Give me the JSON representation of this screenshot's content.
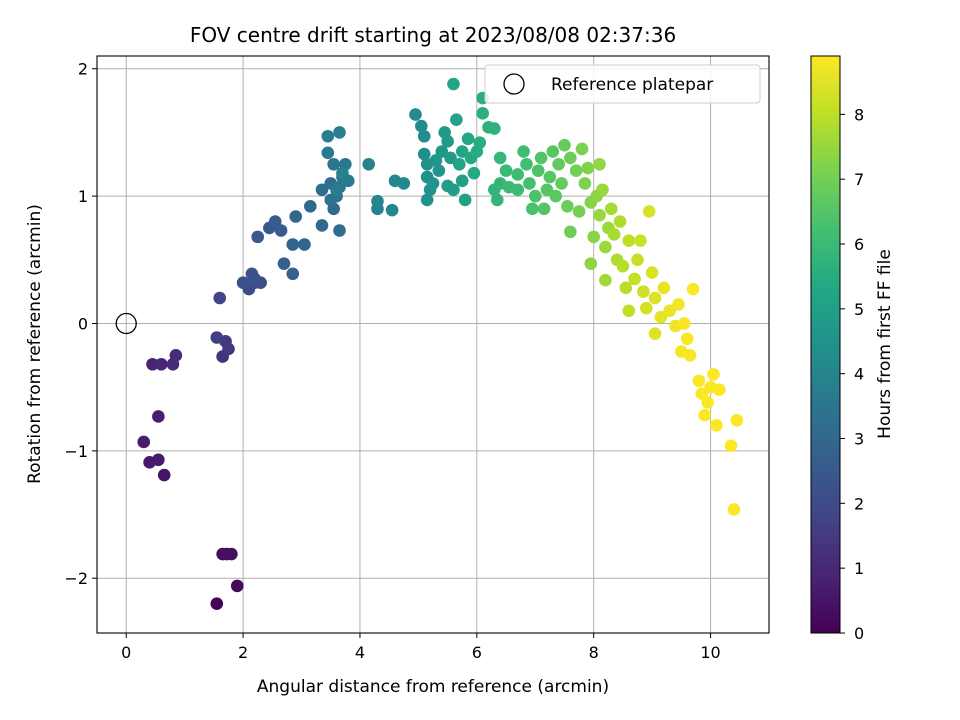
{
  "chart_data": {
    "type": "scatter",
    "title": "FOV centre drift starting at 2023/08/08 02:37:36",
    "xlabel": "Angular distance from reference (arcmin)",
    "ylabel": "Rotation from reference (arcmin)",
    "xlim": [
      -0.5,
      11.0
    ],
    "ylim": [
      -2.43,
      2.1
    ],
    "xticks": [
      0,
      2,
      4,
      6,
      8,
      10
    ],
    "yticks": [
      -2,
      -1,
      0,
      1,
      2
    ],
    "xtick_labels": [
      "0",
      "2",
      "4",
      "6",
      "8",
      "10"
    ],
    "ytick_labels": [
      "−2",
      "−1",
      "0",
      "1",
      "2"
    ],
    "grid": true,
    "legend": {
      "position": "top-right",
      "entries": [
        "Reference platepar"
      ]
    },
    "reference_point": {
      "x": 0,
      "y": 0,
      "label": "Reference platepar"
    },
    "colorbar": {
      "label": "Hours from first FF file",
      "range": [
        0,
        8.9
      ],
      "ticks": [
        0,
        1,
        2,
        3,
        4,
        5,
        6,
        7,
        8
      ],
      "tick_labels": [
        "0",
        "1",
        "2",
        "3",
        "4",
        "5",
        "6",
        "7",
        "8"
      ],
      "colormap": "viridis"
    },
    "points": [
      [
        1.55,
        -2.2,
        0.1
      ],
      [
        1.9,
        -2.06,
        0.2
      ],
      [
        1.65,
        -1.81,
        0.3
      ],
      [
        1.8,
        -1.81,
        0.35
      ],
      [
        1.72,
        -1.81,
        0.4
      ],
      [
        0.65,
        -1.19,
        0.5
      ],
      [
        0.4,
        -1.09,
        0.6
      ],
      [
        0.55,
        -1.07,
        0.65
      ],
      [
        0.3,
        -0.93,
        0.7
      ],
      [
        0.55,
        -0.73,
        0.8
      ],
      [
        0.45,
        -0.32,
        0.9
      ],
      [
        0.6,
        -0.32,
        1.0
      ],
      [
        0.8,
        -0.32,
        1.05
      ],
      [
        0.85,
        -0.25,
        1.1
      ],
      [
        1.65,
        -0.26,
        1.3
      ],
      [
        1.75,
        -0.2,
        1.4
      ],
      [
        1.7,
        -0.14,
        1.5
      ],
      [
        1.55,
        -0.11,
        1.6
      ],
      [
        1.6,
        0.2,
        1.8
      ],
      [
        2.1,
        0.27,
        2.0
      ],
      [
        2.2,
        0.32,
        2.1
      ],
      [
        2.3,
        0.32,
        2.15
      ],
      [
        2.0,
        0.32,
        2.2
      ],
      [
        2.15,
        0.39,
        2.25
      ],
      [
        2.2,
        0.35,
        2.3
      ],
      [
        2.25,
        0.68,
        2.4
      ],
      [
        2.45,
        0.75,
        2.5
      ],
      [
        2.55,
        0.8,
        2.55
      ],
      [
        2.65,
        0.73,
        2.6
      ],
      [
        2.7,
        0.47,
        2.7
      ],
      [
        2.85,
        0.39,
        2.75
      ],
      [
        2.85,
        0.62,
        2.85
      ],
      [
        3.05,
        0.62,
        2.9
      ],
      [
        2.9,
        0.84,
        2.95
      ],
      [
        3.15,
        0.92,
        3.0
      ],
      [
        3.35,
        0.77,
        3.05
      ],
      [
        3.55,
        0.9,
        3.1
      ],
      [
        3.65,
        0.73,
        3.15
      ],
      [
        3.35,
        1.05,
        3.2
      ],
      [
        3.5,
        1.1,
        3.25
      ],
      [
        3.6,
        1.0,
        3.3
      ],
      [
        3.5,
        0.97,
        3.35
      ],
      [
        3.65,
        1.07,
        3.4
      ],
      [
        3.55,
        1.25,
        3.45
      ],
      [
        3.7,
        1.15,
        3.5
      ],
      [
        3.75,
        1.25,
        3.55
      ],
      [
        3.45,
        1.34,
        3.6
      ],
      [
        3.8,
        1.12,
        3.65
      ],
      [
        3.6,
        1.05,
        3.7
      ],
      [
        3.45,
        1.47,
        3.75
      ],
      [
        3.65,
        1.5,
        3.8
      ],
      [
        3.7,
        1.18,
        3.85
      ],
      [
        4.15,
        1.25,
        3.9
      ],
      [
        4.3,
        0.9,
        3.95
      ],
      [
        4.3,
        0.96,
        4.0
      ],
      [
        4.55,
        0.89,
        4.05
      ],
      [
        4.6,
        1.12,
        4.1
      ],
      [
        4.75,
        1.1,
        4.15
      ],
      [
        4.95,
        1.64,
        4.2
      ],
      [
        5.05,
        1.55,
        4.25
      ],
      [
        5.1,
        1.47,
        4.3
      ],
      [
        5.1,
        1.33,
        4.35
      ],
      [
        5.15,
        1.25,
        4.4
      ],
      [
        5.15,
        1.15,
        4.45
      ],
      [
        5.2,
        1.05,
        4.5
      ],
      [
        5.15,
        0.97,
        4.5
      ],
      [
        5.25,
        1.1,
        4.55
      ],
      [
        5.35,
        1.2,
        4.6
      ],
      [
        5.3,
        1.28,
        4.65
      ],
      [
        5.4,
        1.35,
        4.7
      ],
      [
        5.45,
        1.5,
        4.75
      ],
      [
        5.5,
        1.43,
        4.8
      ],
      [
        5.55,
        1.3,
        4.85
      ],
      [
        5.6,
        1.05,
        4.9
      ],
      [
        5.5,
        1.08,
        4.95
      ],
      [
        5.75,
        1.12,
        5.0
      ],
      [
        5.8,
        0.97,
        5.05
      ],
      [
        5.7,
        1.25,
        5.1
      ],
      [
        5.65,
        1.6,
        5.15
      ],
      [
        5.6,
        1.88,
        5.2
      ],
      [
        5.75,
        1.35,
        5.25
      ],
      [
        5.85,
        1.45,
        5.3
      ],
      [
        5.9,
        1.3,
        5.35
      ],
      [
        5.95,
        1.18,
        5.4
      ],
      [
        6.0,
        1.35,
        5.45
      ],
      [
        6.05,
        1.42,
        5.5
      ],
      [
        6.1,
        1.77,
        5.55
      ],
      [
        6.1,
        1.65,
        5.6
      ],
      [
        6.2,
        1.54,
        5.65
      ],
      [
        6.3,
        1.53,
        5.7
      ],
      [
        6.3,
        1.05,
        5.75
      ],
      [
        6.35,
        0.97,
        5.8
      ],
      [
        6.4,
        1.1,
        5.85
      ],
      [
        6.4,
        1.3,
        5.9
      ],
      [
        6.5,
        1.2,
        5.95
      ],
      [
        6.55,
        1.07,
        6.0
      ],
      [
        6.7,
        1.05,
        6.05
      ],
      [
        6.7,
        1.17,
        6.1
      ],
      [
        6.8,
        1.35,
        6.15
      ],
      [
        6.85,
        1.25,
        6.2
      ],
      [
        6.9,
        1.1,
        6.25
      ],
      [
        6.95,
        0.9,
        6.3
      ],
      [
        7.0,
        1.0,
        6.35
      ],
      [
        7.05,
        1.2,
        6.4
      ],
      [
        7.1,
        1.3,
        6.45
      ],
      [
        7.15,
        0.9,
        6.5
      ],
      [
        7.2,
        1.05,
        6.55
      ],
      [
        7.25,
        1.15,
        6.6
      ],
      [
        7.3,
        1.35,
        6.6
      ],
      [
        7.35,
        1.0,
        6.65
      ],
      [
        7.4,
        1.25,
        6.7
      ],
      [
        7.45,
        1.1,
        6.75
      ],
      [
        7.5,
        1.4,
        6.8
      ],
      [
        7.55,
        0.92,
        6.85
      ],
      [
        7.6,
        1.3,
        6.9
      ],
      [
        7.6,
        0.72,
        6.95
      ],
      [
        7.7,
        1.2,
        7.0
      ],
      [
        7.75,
        0.88,
        7.05
      ],
      [
        7.8,
        1.37,
        7.1
      ],
      [
        7.85,
        1.1,
        7.15
      ],
      [
        7.9,
        1.22,
        7.2
      ],
      [
        7.95,
        0.95,
        7.25
      ],
      [
        8.0,
        0.68,
        7.3
      ],
      [
        7.95,
        0.47,
        7.35
      ],
      [
        8.05,
        1.0,
        7.4
      ],
      [
        8.1,
        1.25,
        7.45
      ],
      [
        8.1,
        0.85,
        7.5
      ],
      [
        8.15,
        1.05,
        7.5
      ],
      [
        8.2,
        0.6,
        7.55
      ],
      [
        8.25,
        0.75,
        7.6
      ],
      [
        8.2,
        0.34,
        7.65
      ],
      [
        8.3,
        0.9,
        7.7
      ],
      [
        8.35,
        0.7,
        7.75
      ],
      [
        8.4,
        0.5,
        7.8
      ],
      [
        8.45,
        0.8,
        7.85
      ],
      [
        8.5,
        0.45,
        7.9
      ],
      [
        8.55,
        0.28,
        7.95
      ],
      [
        8.6,
        0.65,
        8.0
      ],
      [
        8.6,
        0.1,
        8.05
      ],
      [
        8.7,
        0.35,
        8.1
      ],
      [
        8.75,
        0.5,
        8.15
      ],
      [
        8.8,
        0.65,
        8.2
      ],
      [
        8.85,
        0.25,
        8.25
      ],
      [
        8.9,
        0.12,
        8.3
      ],
      [
        8.95,
        0.88,
        8.35
      ],
      [
        9.0,
        0.4,
        8.4
      ],
      [
        9.05,
        0.2,
        8.45
      ],
      [
        9.05,
        -0.08,
        8.5
      ],
      [
        9.15,
        0.05,
        8.55
      ],
      [
        9.2,
        0.28,
        8.6
      ],
      [
        9.3,
        0.1,
        8.65
      ],
      [
        9.4,
        -0.02,
        8.7
      ],
      [
        9.45,
        0.15,
        8.75
      ],
      [
        9.5,
        -0.22,
        8.8
      ],
      [
        9.55,
        0.0,
        8.85
      ],
      [
        9.6,
        -0.12,
        8.85
      ],
      [
        9.65,
        -0.25,
        8.85
      ],
      [
        9.7,
        0.27,
        8.86
      ],
      [
        9.8,
        -0.45,
        8.87
      ],
      [
        9.85,
        -0.55,
        8.87
      ],
      [
        9.9,
        -0.72,
        8.88
      ],
      [
        9.95,
        -0.62,
        8.88
      ],
      [
        10.0,
        -0.5,
        8.88
      ],
      [
        10.05,
        -0.4,
        8.88
      ],
      [
        10.1,
        -0.8,
        8.88
      ],
      [
        10.15,
        -0.52,
        8.89
      ],
      [
        10.35,
        -0.96,
        8.89
      ],
      [
        10.4,
        -1.46,
        8.89
      ],
      [
        10.45,
        -0.76,
        8.89
      ]
    ]
  }
}
